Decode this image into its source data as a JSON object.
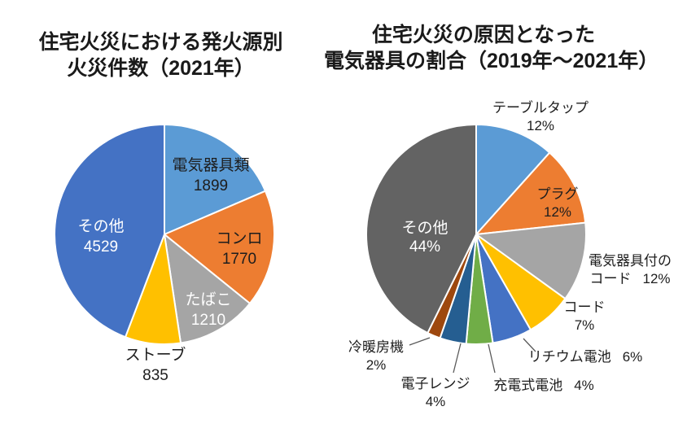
{
  "chart_data": [
    {
      "type": "pie",
      "title": [
        "住宅火災における発火源別",
        "火災件数（2021年）"
      ],
      "start_angle_deg": 0,
      "direction": "clockwise",
      "legend": "none",
      "slices": [
        {
          "label": "電気器具類",
          "value": 1899,
          "display": "1899",
          "color": "#5B9BD5",
          "label_color": "dark"
        },
        {
          "label": "コンロ",
          "value": 1770,
          "display": "1770",
          "color": "#ED7D31",
          "label_color": "dark"
        },
        {
          "label": "たばこ",
          "value": 1210,
          "display": "1210",
          "color": "#A5A5A5",
          "label_color": "white"
        },
        {
          "label": "ストーブ",
          "value": 835,
          "display": "835",
          "color": "#FFC000",
          "label_color": "dark"
        },
        {
          "label": "その他",
          "value": 4529,
          "display": "4529",
          "color": "#4472C4",
          "label_color": "white"
        }
      ]
    },
    {
      "type": "pie",
      "title": [
        "住宅火災の原因となった",
        "電気器具の割合（2019年～2021年）"
      ],
      "start_angle_deg": 0,
      "direction": "clockwise",
      "legend": "none",
      "slices": [
        {
          "label": "テーブルタップ",
          "value": 12,
          "display": "12%",
          "color": "#5B9BD5",
          "label_color": "dark"
        },
        {
          "label": "プラグ",
          "value": 12,
          "display": "12%",
          "color": "#ED7D31",
          "label_color": "dark"
        },
        {
          "label": "電気器具付のコード",
          "label_lines": [
            "電気器具付の",
            "コード"
          ],
          "value": 12,
          "display": "12%",
          "color": "#A5A5A5",
          "label_color": "dark"
        },
        {
          "label": "コード",
          "value": 7,
          "display": "7%",
          "color": "#FFC000",
          "label_color": "dark"
        },
        {
          "label": "リチウム電池",
          "value": 6,
          "display": "6%",
          "color": "#4472C4",
          "label_color": "dark"
        },
        {
          "label": "充電式電池",
          "value": 4,
          "display": "4%",
          "color": "#70AD47",
          "label_color": "dark"
        },
        {
          "label": "電子レンジ",
          "value": 4,
          "display": "4%",
          "color": "#255E91",
          "label_color": "dark"
        },
        {
          "label": "冷暖房機",
          "value": 2,
          "display": "2%",
          "color": "#9E480E",
          "label_color": "dark"
        },
        {
          "label": "その他",
          "value": 44,
          "display": "44%",
          "color": "#636363",
          "label_color": "white"
        }
      ]
    }
  ],
  "colors": {
    "slice_border": "#ffffff",
    "leader_line": "#595959",
    "title_text": "#1a1a1a"
  }
}
